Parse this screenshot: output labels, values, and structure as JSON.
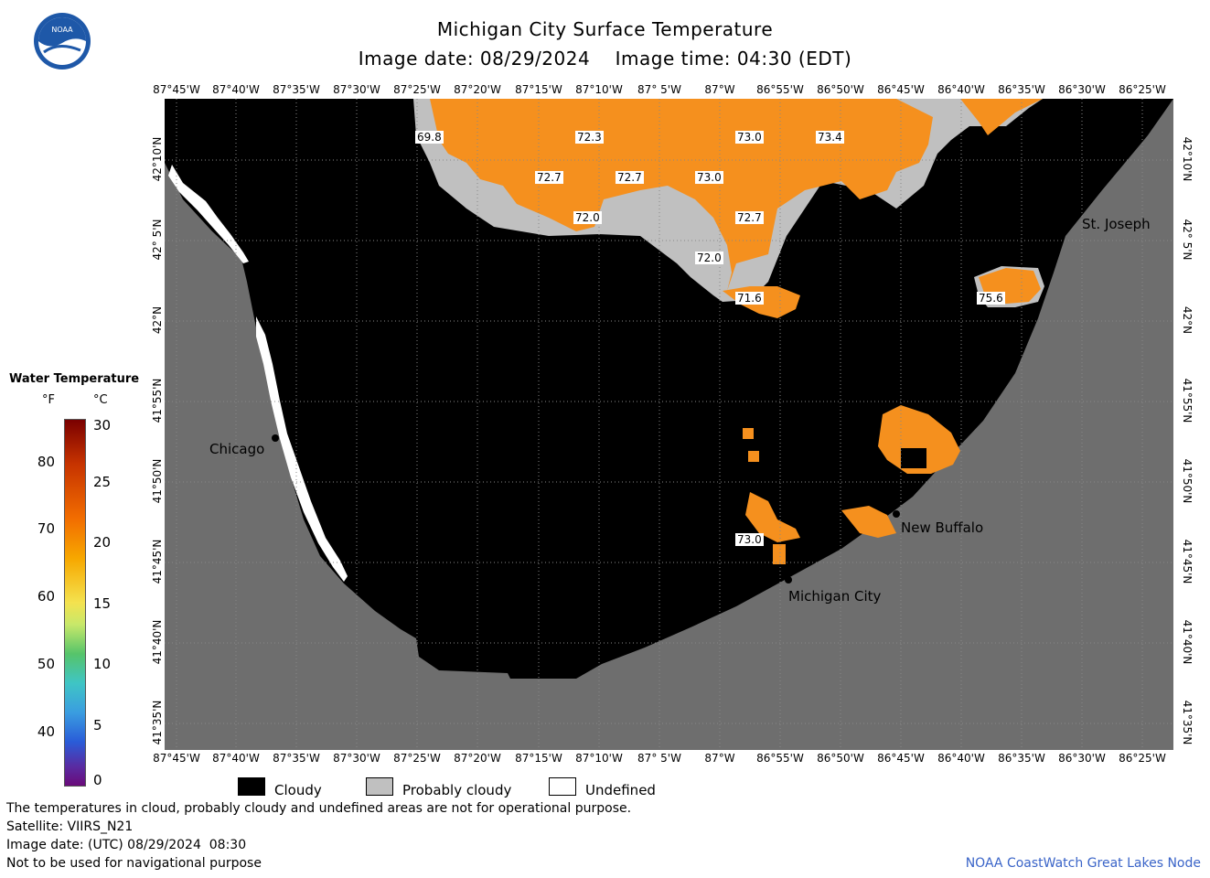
{
  "header": {
    "title": "Michigan City Surface Temperature",
    "subtitle": "Image date: 08/29/2024    Image time: 04:30 (EDT)"
  },
  "logo": {
    "text": "NOAA",
    "icon": "noaa-logo-icon"
  },
  "axes": {
    "lon_labels": [
      "87°45'W",
      "87°40'W",
      "87°35'W",
      "87°30'W",
      "87°25'W",
      "87°20'W",
      "87°15'W",
      "87°10'W",
      "87° 5'W",
      "87°W",
      "86°55'W",
      "86°50'W",
      "86°45'W",
      "86°40'W",
      "86°35'W",
      "86°30'W",
      "86°25'W"
    ],
    "lat_labels": [
      "42°10'N",
      "42° 5'N",
      "42°N",
      "41°55'N",
      "41°50'N",
      "41°45'N",
      "41°40'N",
      "41°35'N"
    ]
  },
  "places": [
    {
      "name": "Chicago"
    },
    {
      "name": "St. Joseph"
    },
    {
      "name": "New Buffalo"
    },
    {
      "name": "Michigan City"
    }
  ],
  "temperature_labels": [
    "69.8",
    "72.3",
    "73.0",
    "73.4",
    "72.7",
    "72.7",
    "73.0",
    "72.0",
    "72.7",
    "72.0",
    "71.6",
    "75.6",
    "73.0"
  ],
  "colorbar": {
    "title": "Water Temperature",
    "unit_f": "°F",
    "unit_c": "°C",
    "ticks_f": [
      "80",
      "70",
      "60",
      "50",
      "40"
    ],
    "ticks_c": [
      "30",
      "25",
      "20",
      "15",
      "10",
      "5",
      "0"
    ]
  },
  "legend": {
    "cloudy": "Cloudy",
    "probably_cloudy": "Probably cloudy",
    "undefined": "Undefined"
  },
  "footer": {
    "line1": "The temperatures in cloud, probably cloudy and undefined areas are not for operational purpose.",
    "line2": "Satellite: VIIRS_N21",
    "line3": "Image date: (UTC) 08/29/2024  08:30",
    "line4": "Not to be used for navigational purpose",
    "credit": "NOAA CoastWatch Great Lakes Node"
  },
  "colors": {
    "cloud": "#000000",
    "probably_cloudy": "#c0c0c0",
    "land": "#6e6e6e",
    "warm_water": "#f5901e",
    "credit": "#3a64c8"
  }
}
